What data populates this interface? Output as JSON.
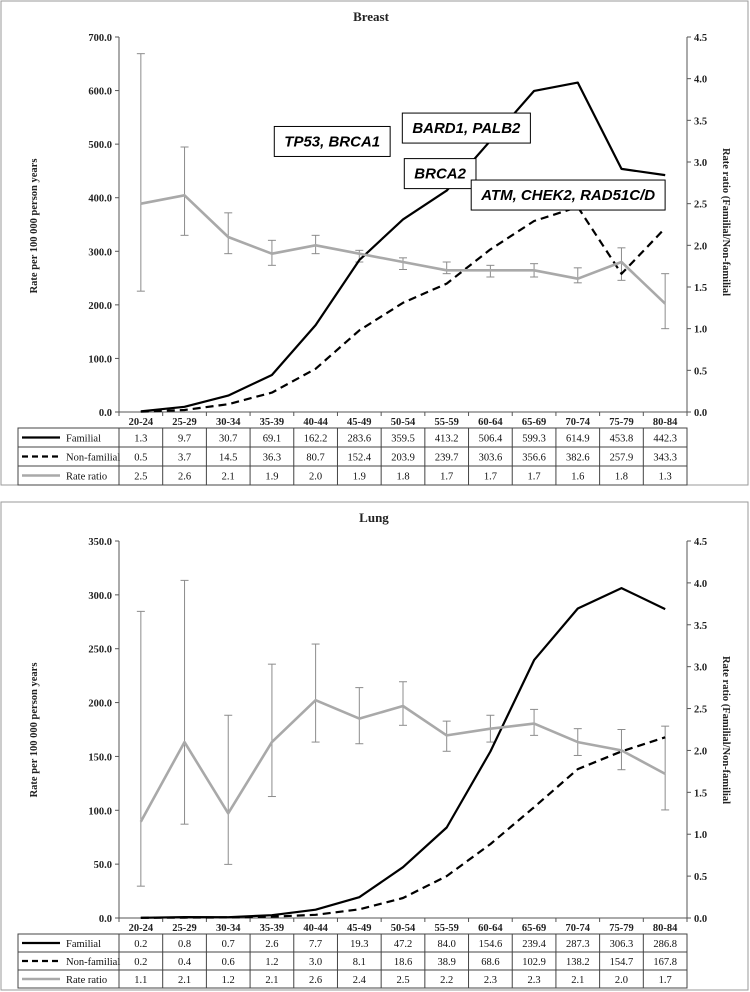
{
  "chart_data": [
    {
      "type": "line",
      "title": "Breast",
      "ylabel": "Rate per 100 000 person years",
      "y2label": "Rate ratio (Familial/Non-familial",
      "ylim": [
        0,
        700
      ],
      "y2lim": [
        0,
        4.5
      ],
      "yticks": [
        "0.0",
        "100.0",
        "200.0",
        "300.0",
        "400.0",
        "500.0",
        "600.0",
        "700.0"
      ],
      "y2ticks": [
        "0.0",
        "0.5",
        "1.0",
        "1.5",
        "2.0",
        "2.5",
        "3.0",
        "3.5",
        "4.0",
        "4.5"
      ],
      "categories": [
        "20-24",
        "25-29",
        "30-34",
        "35-39",
        "40-44",
        "45-49",
        "50-54",
        "55-59",
        "60-64",
        "65-69",
        "70-74",
        "75-79",
        "80-84"
      ],
      "series": [
        {
          "name": "Familial",
          "axis": "left",
          "style": "solid-black",
          "values": [
            1.3,
            9.7,
            30.7,
            69.1,
            162.2,
            283.6,
            359.5,
            413.2,
            506.4,
            599.3,
            614.9,
            453.8,
            442.3
          ],
          "labels": [
            "1.3",
            "9.7",
            "30.7",
            "69.1",
            "162.2",
            "283.6",
            "359.5",
            "413.2",
            "506.4",
            "599.3",
            "614.9",
            "453.8",
            "442.3"
          ]
        },
        {
          "name": "Non-familial",
          "axis": "left",
          "style": "dashed-black",
          "values": [
            0.5,
            3.7,
            14.5,
            36.3,
            80.7,
            152.4,
            203.9,
            239.7,
            303.6,
            356.6,
            382.6,
            257.9,
            343.3
          ],
          "labels": [
            "0.5",
            "3.7",
            "14.5",
            "36.3",
            "80.7",
            "152.4",
            "203.9",
            "239.7",
            "303.6",
            "356.6",
            "382.6",
            "257.9",
            "343.3"
          ]
        },
        {
          "name": "Rate ratio",
          "axis": "right",
          "style": "solid-gray",
          "values": [
            2.5,
            2.6,
            2.1,
            1.9,
            2.0,
            1.9,
            1.8,
            1.7,
            1.7,
            1.7,
            1.6,
            1.8,
            1.3
          ],
          "labels": [
            "2.5",
            "2.6",
            "2.1",
            "1.9",
            "2.0",
            "1.9",
            "1.8",
            "1.7",
            "1.7",
            "1.7",
            "1.6",
            "1.8",
            "1.3"
          ],
          "ci_low": [
            1.45,
            2.12,
            1.9,
            1.76,
            1.9,
            1.8,
            1.71,
            1.66,
            1.62,
            1.62,
            1.55,
            1.58,
            1.0
          ],
          "ci_high": [
            4.3,
            3.18,
            2.39,
            2.06,
            2.12,
            1.94,
            1.85,
            1.8,
            1.76,
            1.78,
            1.73,
            1.97,
            1.66
          ]
        }
      ],
      "annotations": [
        {
          "text": "TP53, BRCA1",
          "x": 4.88,
          "y": 505
        },
        {
          "text": "BARD1, PALB2",
          "x": 7.95,
          "y": 530
        },
        {
          "text": "BRCA2",
          "x": 7.35,
          "y": 445
        },
        {
          "text": "ATM, CHEK2, RAD51C/D",
          "x": 10.28,
          "y": 405
        }
      ]
    },
    {
      "type": "line",
      "title": "Lung",
      "ylabel": "Rate per 100 000 person years",
      "y2label": "Rate ratio (Familial/Non-familial",
      "ylim": [
        0,
        350
      ],
      "y2lim": [
        0,
        4.5
      ],
      "yticks": [
        "0.0",
        "50.0",
        "100.0",
        "150.0",
        "200.0",
        "250.0",
        "300.0",
        "350.0"
      ],
      "y2ticks": [
        "0.0",
        "0.5",
        "1.0",
        "1.5",
        "2.0",
        "2.5",
        "3.0",
        "3.5",
        "4.0",
        "4.5"
      ],
      "categories": [
        "20-24",
        "25-29",
        "30-34",
        "35-39",
        "40-44",
        "45-49",
        "50-54",
        "55-59",
        "60-64",
        "65-69",
        "70-74",
        "75-79",
        "80-84"
      ],
      "series": [
        {
          "name": "Familial",
          "axis": "left",
          "style": "solid-black",
          "values": [
            0.2,
            0.8,
            0.7,
            2.6,
            7.7,
            19.3,
            47.2,
            84.0,
            154.6,
            239.4,
            287.3,
            306.3,
            286.8
          ],
          "labels": [
            "0.2",
            "0.8",
            "0.7",
            "2.6",
            "7.7",
            "19.3",
            "47.2",
            "84.0",
            "154.6",
            "239.4",
            "287.3",
            "306.3",
            "286.8"
          ]
        },
        {
          "name": "Non-familial",
          "axis": "left",
          "style": "dashed-black",
          "values": [
            0.2,
            0.4,
            0.6,
            1.2,
            3.0,
            8.1,
            18.6,
            38.9,
            68.6,
            102.9,
            138.2,
            154.7,
            167.8
          ],
          "labels": [
            "0.2",
            "0.4",
            "0.6",
            "1.2",
            "3.0",
            "8.1",
            "18.6",
            "38.9",
            "68.6",
            "102.9",
            "138.2",
            "154.7",
            "167.8"
          ]
        },
        {
          "name": "Rate ratio",
          "axis": "right",
          "style": "solid-gray",
          "values": [
            1.15,
            2.1,
            1.25,
            2.1,
            2.6,
            2.38,
            2.53,
            2.18,
            2.26,
            2.32,
            2.1,
            2.0,
            1.72
          ],
          "labels": [
            "1.1",
            "2.1",
            "1.2",
            "2.1",
            "2.6",
            "2.4",
            "2.5",
            "2.2",
            "2.3",
            "2.3",
            "2.1",
            "2.0",
            "1.7"
          ],
          "ci_low": [
            0.38,
            1.12,
            0.64,
            1.45,
            2.1,
            2.08,
            2.3,
            1.99,
            2.1,
            2.18,
            1.94,
            1.77,
            1.29
          ],
          "ci_high": [
            3.66,
            4.03,
            2.42,
            3.03,
            3.27,
            2.75,
            2.82,
            2.35,
            2.42,
            2.49,
            2.26,
            2.25,
            2.29
          ]
        }
      ]
    }
  ]
}
